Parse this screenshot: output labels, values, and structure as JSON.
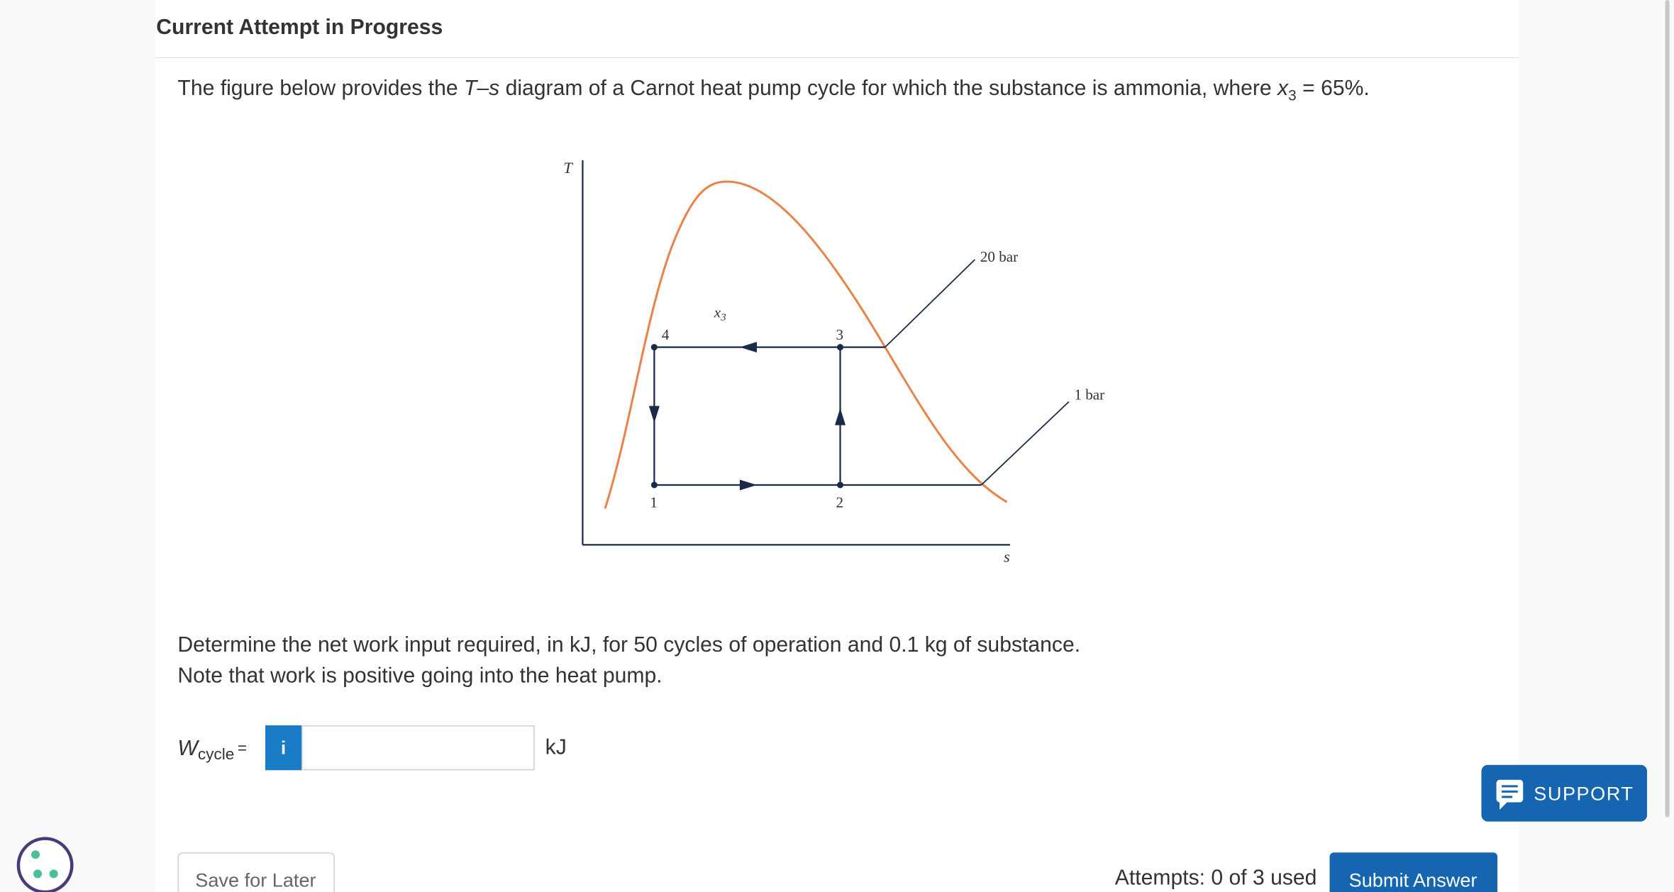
{
  "header": {
    "title": "Current Attempt in Progress"
  },
  "question": {
    "intro": [
      "The figure below provides the ",
      "T",
      "–",
      "s",
      " diagram of a Carnot heat pump cycle for which the substance is ammonia, where ",
      "x",
      "3",
      " = 65%."
    ],
    "lines": [
      "Determine the net work input required, in kJ, for 50 cycles of operation and 0.1 kg of substance.",
      "Note that work is positive going into the heat pump."
    ]
  },
  "figure": {
    "axis_y": "T",
    "axis_x": "s",
    "states": [
      "1",
      "2",
      "3",
      "4"
    ],
    "quality": {
      "symbol": "x",
      "subscript": "3"
    },
    "isobars": [
      "20 bar",
      "1 bar"
    ]
  },
  "answer": {
    "symbol": "W",
    "subscript": "cycle",
    "equals": "=",
    "info": "i",
    "unit": "kJ"
  },
  "support": "SUPPORT",
  "buttons": {
    "save": "Save for Later",
    "submit": "Submit Answer"
  },
  "attempts": "Attempts: 0 of 3 used"
}
